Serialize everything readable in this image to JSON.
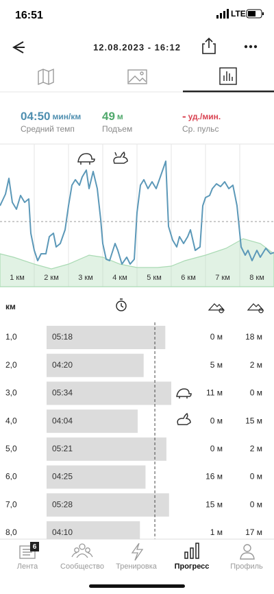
{
  "status_bar": {
    "time": "16:51",
    "network": "LTE"
  },
  "header": {
    "title": "12.08.2023 - 16:12"
  },
  "stats": [
    {
      "value": "04:50",
      "unit": "мин/км",
      "label": "Средний темп"
    },
    {
      "value": "49",
      "unit": "м",
      "label": "Подъем"
    },
    {
      "value": "-",
      "unit": "уд./мин.",
      "label": "Ср. пульс"
    }
  ],
  "chart_data": {
    "type": "line",
    "x_labels": [
      "1 км",
      "2 км",
      "3 км",
      "4 км",
      "5 км",
      "6 км",
      "7 км",
      "8 км"
    ],
    "xlim": [
      0,
      8
    ],
    "ylim": [
      0,
      208
    ],
    "series": [
      {
        "type": "area",
        "color": "#a9dab3",
        "x": [
          0,
          0.4,
          1,
          1.5,
          2,
          2.6,
          3,
          3.5,
          4,
          4.6,
          5,
          5.4,
          6,
          6.6,
          7.1,
          7.6,
          8
        ],
        "values": [
          48,
          43,
          33,
          26,
          33,
          46,
          43,
          33,
          28,
          28,
          30,
          38,
          46,
          56,
          70,
          63,
          48
        ]
      },
      {
        "type": "line",
        "color": "#5b98b8",
        "x": [
          0,
          0.16,
          0.26,
          0.36,
          0.48,
          0.6,
          0.72,
          0.84,
          0.9,
          1,
          1.1,
          1.2,
          1.34,
          1.44,
          1.56,
          1.64,
          1.76,
          1.9,
          2,
          2.1,
          2.2,
          2.32,
          2.4,
          2.52,
          2.6,
          2.72,
          2.84,
          2.94,
          3,
          3.1,
          3.2,
          3.36,
          3.44,
          3.56,
          3.7,
          3.8,
          3.92,
          4,
          4.1,
          4.2,
          4.32,
          4.44,
          4.56,
          4.68,
          4.84,
          4.92,
          5.04,
          5.16,
          5.24,
          5.36,
          5.48,
          5.56,
          5.7,
          5.84,
          5.92,
          6,
          6.12,
          6.2,
          6.32,
          6.44,
          6.56,
          6.68,
          6.8,
          6.92,
          7.04,
          7.16,
          7.24,
          7.36,
          7.5,
          7.6,
          7.76,
          7.9,
          8
        ],
        "values": [
          118,
          135,
          158,
          123,
          113,
          133,
          123,
          128,
          78,
          53,
          38,
          48,
          48,
          73,
          78,
          58,
          63,
          83,
          118,
          148,
          156,
          148,
          160,
          170,
          143,
          168,
          143,
          98,
          63,
          40,
          38,
          63,
          53,
          33,
          43,
          33,
          40,
          108,
          148,
          156,
          143,
          153,
          143,
          160,
          183,
          88,
          68,
          58,
          73,
          63,
          73,
          83,
          53,
          58,
          118,
          130,
          133,
          143,
          150,
          146,
          153,
          143,
          148,
          118,
          58,
          46,
          53,
          38,
          53,
          43,
          56,
          48,
          50
        ]
      }
    ]
  },
  "table": {
    "header": "км",
    "rows": [
      [
        "1,0",
        "05:18",
        "0 м",
        "18 м"
      ],
      [
        "2,0",
        "04:20",
        "5 м",
        "2 м"
      ],
      [
        "3,0",
        "05:34",
        "11 м",
        "0 м"
      ],
      [
        "4,0",
        "04:04",
        "0 м",
        "15 м"
      ],
      [
        "5,0",
        "05:21",
        "0 м",
        "2 м"
      ],
      [
        "6,0",
        "04:25",
        "16 м",
        "0 м"
      ],
      [
        "7,0",
        "05:28",
        "15 м",
        "0 м"
      ],
      [
        "8,0",
        "04:10",
        "1 м",
        "17 м"
      ]
    ]
  },
  "nav": {
    "badge": "6",
    "items": [
      "Лента",
      "Сообщество",
      "Тренировка",
      "Прогресс",
      "Профиль"
    ]
  }
}
